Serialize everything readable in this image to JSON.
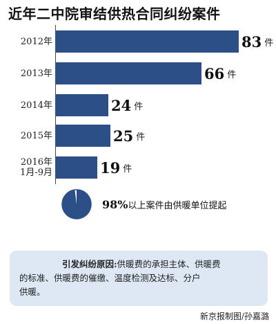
{
  "title": "近年二中院审结供热合同纠纷案件",
  "chart_data": {
    "type": "bar",
    "orientation": "horizontal",
    "categories": [
      [
        "2012年"
      ],
      [
        "2013年"
      ],
      [
        "2014年"
      ],
      [
        "2015年"
      ],
      [
        "2016年",
        "1月-9月"
      ]
    ],
    "values": [
      83,
      66,
      24,
      25,
      19
    ],
    "value_labels": [
      "83",
      "66",
      "24",
      "25",
      "19"
    ],
    "unit": "件",
    "xlim": [
      0,
      83
    ],
    "grid": false,
    "bar_color": "#2c4f88"
  },
  "pie": {
    "percent": 98,
    "percent_label": "98%",
    "text": "以上案件由供暖单位提起",
    "fill_color": "#2c4f88",
    "rest_color": "#ffffff"
  },
  "note": {
    "heading": "引发纠纷原因:",
    "line1": "供暖费的承担主体、供暖费",
    "line2": "的标准、供暖费的催缴、温度检测及达标、分户",
    "line3": "供暖。"
  },
  "credit": "新京报制图/孙嘉潞"
}
